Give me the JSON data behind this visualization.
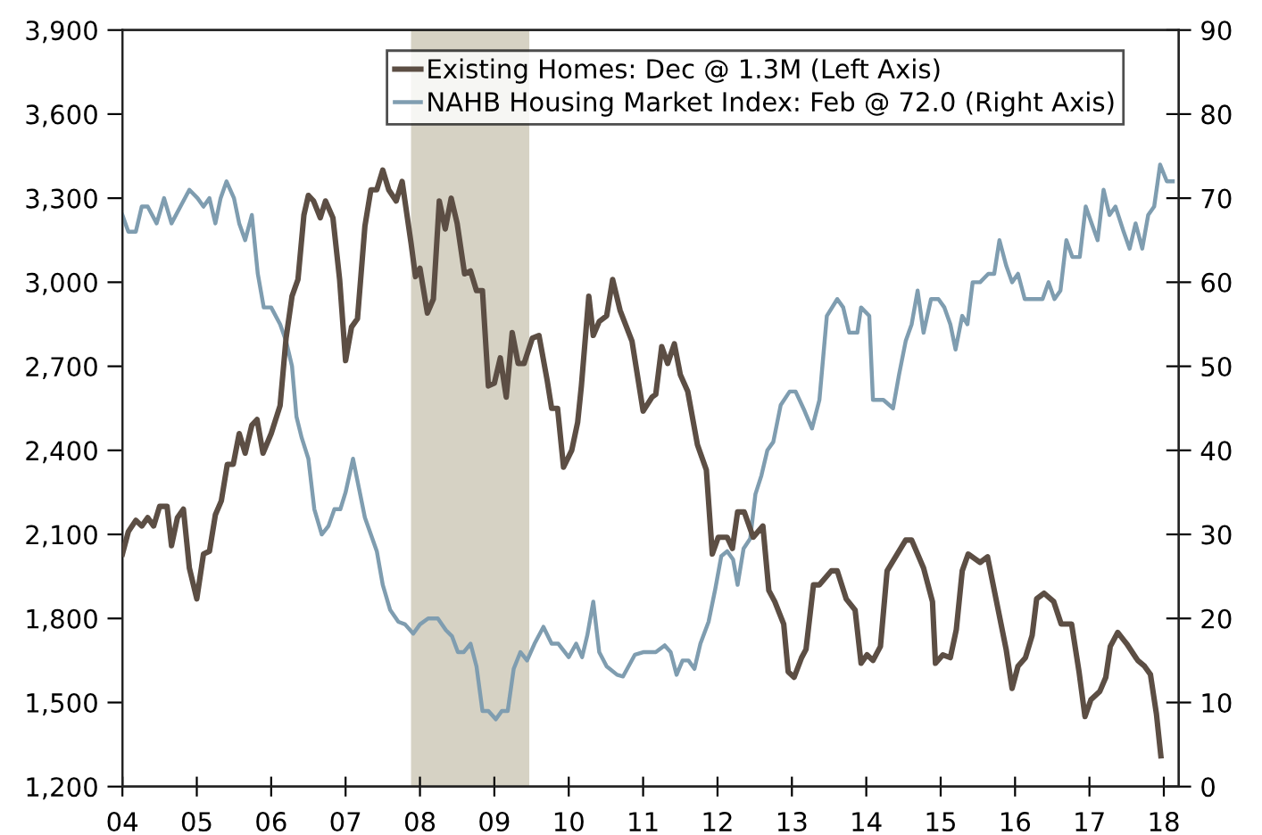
{
  "chart_data": {
    "type": "line",
    "xlim": [
      2004,
      2018.2
    ],
    "xticks": [
      {
        "value": 2004,
        "label": "04"
      },
      {
        "value": 2005,
        "label": "05"
      },
      {
        "value": 2006,
        "label": "06"
      },
      {
        "value": 2007,
        "label": "07"
      },
      {
        "value": 2008,
        "label": "08"
      },
      {
        "value": 2009,
        "label": "09"
      },
      {
        "value": 2010,
        "label": "10"
      },
      {
        "value": 2011,
        "label": "11"
      },
      {
        "value": 2012,
        "label": "12"
      },
      {
        "value": 2013,
        "label": "13"
      },
      {
        "value": 2014,
        "label": "14"
      },
      {
        "value": 2015,
        "label": "15"
      },
      {
        "value": 2016,
        "label": "16"
      },
      {
        "value": 2017,
        "label": "17"
      },
      {
        "value": 2018,
        "label": "18"
      }
    ],
    "ylim": [
      1200,
      3900
    ],
    "yticks": [
      {
        "value": 1200,
        "label": "1,200"
      },
      {
        "value": 1500,
        "label": "1,500"
      },
      {
        "value": 1800,
        "label": "1,800"
      },
      {
        "value": 2100,
        "label": "2,100"
      },
      {
        "value": 2400,
        "label": "2,400"
      },
      {
        "value": 2700,
        "label": "2,700"
      },
      {
        "value": 3000,
        "label": "3,000"
      },
      {
        "value": 3300,
        "label": "3,300"
      },
      {
        "value": 3600,
        "label": "3,600"
      },
      {
        "value": 3900,
        "label": "3,900"
      }
    ],
    "y2lim": [
      0,
      90
    ],
    "y2ticks": [
      0,
      10,
      20,
      30,
      40,
      50,
      60,
      70,
      80,
      90
    ],
    "legend": "top right",
    "bands": [
      {
        "axis": "x",
        "from": 2007.88,
        "to": 2009.47,
        "color": "#d6d2c4"
      }
    ],
    "series": [
      {
        "name": "Existing Homes: Dec @ 1.3M (Left Axis)",
        "color": "#5c4e44",
        "x": [
          2004.0,
          2004.08,
          2004.18,
          2004.26,
          2004.34,
          2004.42,
          2004.5,
          2004.6,
          2004.66,
          2004.74,
          2004.82,
          2004.9,
          2005.0,
          2005.09,
          2005.17,
          2005.25,
          2005.33,
          2005.41,
          2005.49,
          2005.57,
          2005.65,
          2005.74,
          2005.81,
          2005.89,
          2006.0,
          2006.12,
          2006.2,
          2006.28,
          2006.36,
          2006.44,
          2006.5,
          2006.57,
          2006.66,
          2006.73,
          2006.83,
          2006.92,
          2007.0,
          2007.08,
          2007.16,
          2007.26,
          2007.34,
          2007.42,
          2007.5,
          2007.58,
          2007.68,
          2007.76,
          2007.88,
          2007.94,
          2008.0,
          2008.1,
          2008.18,
          2008.26,
          2008.34,
          2008.42,
          2008.5,
          2008.6,
          2008.68,
          2008.76,
          2008.84,
          2008.92,
          2009.0,
          2009.08,
          2009.16,
          2009.24,
          2009.32,
          2009.4,
          2009.51,
          2009.6,
          2009.71,
          2009.77,
          2009.85,
          2009.93,
          2010.04,
          2010.12,
          2010.17,
          2010.27,
          2010.33,
          2010.41,
          2010.51,
          2010.59,
          2010.69,
          2010.85,
          2011.0,
          2011.12,
          2011.17,
          2011.25,
          2011.33,
          2011.42,
          2011.5,
          2011.6,
          2011.73,
          2011.85,
          2011.93,
          2012.01,
          2012.13,
          2012.2,
          2012.27,
          2012.36,
          2012.48,
          2012.61,
          2012.69,
          2012.77,
          2012.89,
          2012.95,
          2013.03,
          2013.13,
          2013.19,
          2013.29,
          2013.37,
          2013.53,
          2013.61,
          2013.73,
          2013.85,
          2013.93,
          2014.01,
          2014.09,
          2014.19,
          2014.28,
          2014.53,
          2014.61,
          2014.77,
          2014.89,
          2014.93,
          2015.03,
          2015.13,
          2015.21,
          2015.29,
          2015.37,
          2015.53,
          2015.63,
          2015.88,
          2015.96,
          2016.04,
          2016.14,
          2016.23,
          2016.29,
          2016.39,
          2016.52,
          2016.62,
          2016.76,
          2016.86,
          2016.94,
          2017.02,
          2017.14,
          2017.22,
          2017.28,
          2017.38,
          2017.5,
          2017.65,
          2017.74,
          2017.82,
          2017.9,
          2017.96
        ],
        "values": [
          2030,
          2110,
          2150,
          2130,
          2160,
          2130,
          2200,
          2200,
          2060,
          2160,
          2190,
          1980,
          1870,
          2030,
          2040,
          2170,
          2220,
          2350,
          2350,
          2460,
          2390,
          2490,
          2510,
          2390,
          2460,
          2560,
          2800,
          2950,
          3010,
          3240,
          3310,
          3290,
          3230,
          3290,
          3230,
          3010,
          2720,
          2840,
          2870,
          3200,
          3330,
          3330,
          3400,
          3330,
          3290,
          3360,
          3140,
          3020,
          3050,
          2890,
          2940,
          3290,
          3190,
          3300,
          3210,
          3030,
          3040,
          2970,
          2970,
          2630,
          2640,
          2730,
          2590,
          2820,
          2710,
          2710,
          2800,
          2810,
          2650,
          2550,
          2550,
          2340,
          2400,
          2500,
          2630,
          2950,
          2810,
          2860,
          2880,
          3010,
          2900,
          2790,
          2540,
          2590,
          2600,
          2770,
          2710,
          2780,
          2670,
          2610,
          2420,
          2330,
          2030,
          2090,
          2090,
          2050,
          2180,
          2180,
          2090,
          2130,
          1900,
          1860,
          1780,
          1610,
          1590,
          1660,
          1690,
          1920,
          1920,
          1970,
          1970,
          1870,
          1830,
          1640,
          1670,
          1650,
          1700,
          1970,
          2080,
          2080,
          1980,
          1860,
          1640,
          1670,
          1660,
          1760,
          1970,
          2030,
          2000,
          2020,
          1690,
          1550,
          1630,
          1660,
          1740,
          1870,
          1890,
          1860,
          1780,
          1780,
          1610,
          1450,
          1510,
          1540,
          1590,
          1700,
          1750,
          1710,
          1650,
          1630,
          1600,
          1460,
          1310
        ]
      },
      {
        "name": "NAHB Housing Market Index: Feb @ 72.0 (Right Axis)",
        "color": "#7f9db0",
        "axis": "y2",
        "x": [
          2004.0,
          2004.08,
          2004.18,
          2004.26,
          2004.34,
          2004.46,
          2004.56,
          2004.66,
          2004.78,
          2004.9,
          2005.01,
          2005.09,
          2005.17,
          2005.25,
          2005.32,
          2005.4,
          2005.5,
          2005.57,
          2005.65,
          2005.74,
          2005.82,
          2005.9,
          2006.0,
          2006.12,
          2006.2,
          2006.28,
          2006.34,
          2006.41,
          2006.5,
          2006.58,
          2006.68,
          2006.77,
          2006.85,
          2006.93,
          2007.0,
          2007.1,
          2007.18,
          2007.26,
          2007.36,
          2007.42,
          2007.5,
          2007.6,
          2007.71,
          2007.8,
          2007.91,
          2008.0,
          2008.11,
          2008.24,
          2008.35,
          2008.43,
          2008.51,
          2008.59,
          2008.68,
          2008.76,
          2008.84,
          2008.92,
          2009.02,
          2009.1,
          2009.18,
          2009.26,
          2009.35,
          2009.44,
          2009.54,
          2009.66,
          2009.77,
          2009.86,
          2010.0,
          2010.1,
          2010.18,
          2010.25,
          2010.33,
          2010.41,
          2010.51,
          2010.65,
          2010.73,
          2010.89,
          2011.01,
          2011.17,
          2011.29,
          2011.37,
          2011.45,
          2011.53,
          2011.61,
          2011.69,
          2011.77,
          2011.88,
          2011.97,
          2012.05,
          2012.13,
          2012.21,
          2012.27,
          2012.35,
          2012.44,
          2012.51,
          2012.59,
          2012.67,
          2012.75,
          2012.85,
          2012.97,
          2013.05,
          2013.17,
          2013.27,
          2013.37,
          2013.47,
          2013.61,
          2013.69,
          2013.77,
          2013.88,
          2013.93,
          2014.04,
          2014.09,
          2014.23,
          2014.36,
          2014.44,
          2014.53,
          2014.61,
          2014.69,
          2014.77,
          2014.87,
          2014.97,
          2015.05,
          2015.13,
          2015.2,
          2015.29,
          2015.36,
          2015.43,
          2015.53,
          2015.64,
          2015.72,
          2015.79,
          2015.88,
          2015.96,
          2016.04,
          2016.13,
          2016.25,
          2016.37,
          2016.45,
          2016.53,
          2016.61,
          2016.69,
          2016.77,
          2016.87,
          2016.95,
          2017.03,
          2017.11,
          2017.19,
          2017.27,
          2017.35,
          2017.46,
          2017.54,
          2017.62,
          2017.71,
          2017.79,
          2017.87,
          2017.95,
          2018.04,
          2018.12
        ],
        "values": [
          68,
          66,
          66,
          69,
          69,
          67,
          70,
          67,
          69,
          71,
          70,
          69,
          70,
          67,
          70,
          72,
          70,
          67,
          65,
          68,
          61,
          57,
          57,
          55,
          53,
          50,
          44,
          41.5,
          39,
          33,
          30,
          31,
          33,
          33,
          35,
          39,
          35.5,
          32,
          29.5,
          28,
          24,
          21,
          19.6,
          19.3,
          18.2,
          19.3,
          20,
          20,
          18.6,
          17.9,
          16,
          16,
          17,
          14.3,
          9,
          9,
          8,
          9,
          9,
          14,
          16,
          15,
          17,
          19,
          17,
          17,
          15.4,
          17,
          15.4,
          18,
          22,
          16,
          14.3,
          13.3,
          13.1,
          15.7,
          16,
          16,
          16.8,
          16,
          13.3,
          15,
          15,
          14,
          17,
          19.6,
          23.5,
          27.4,
          28,
          27,
          24,
          28.3,
          29.5,
          34.8,
          37,
          40,
          41,
          45.4,
          47,
          47,
          44.7,
          42.6,
          46,
          56,
          58,
          57,
          54,
          54,
          57,
          56,
          46,
          46,
          45,
          49,
          53,
          55,
          59,
          54,
          58,
          58,
          57,
          55,
          52,
          56,
          55,
          60,
          60,
          61,
          61,
          65,
          62,
          60,
          61,
          58,
          58,
          58,
          60,
          58,
          59,
          65,
          63,
          63,
          69,
          67,
          65,
          71,
          68,
          69,
          66,
          64,
          67,
          64,
          68,
          69,
          74,
          72,
          72
        ]
      }
    ]
  }
}
